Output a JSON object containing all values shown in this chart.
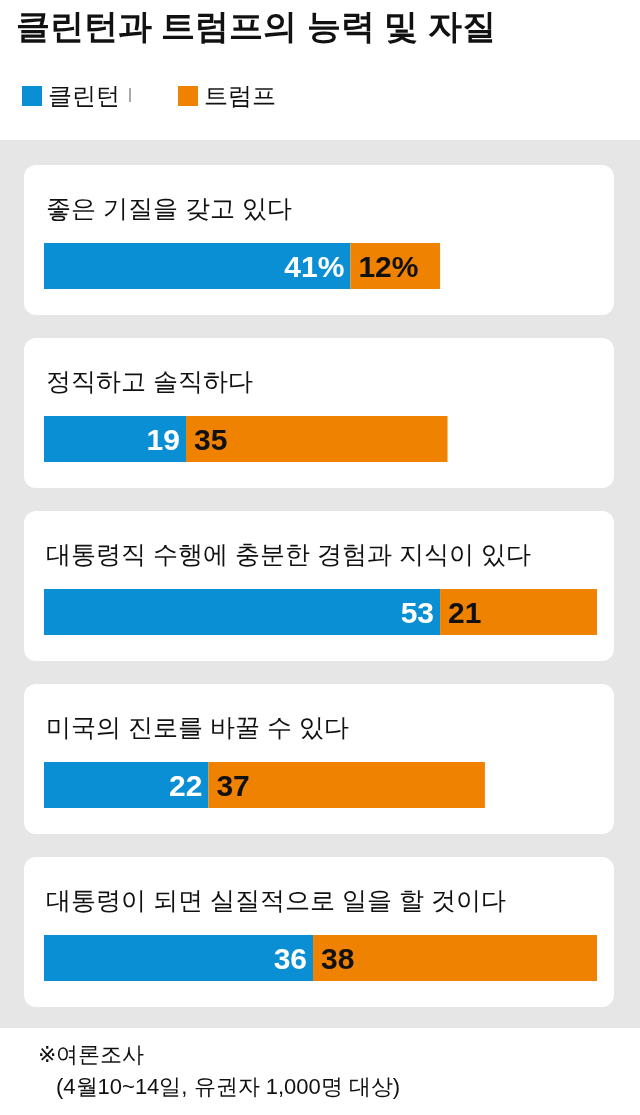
{
  "chart_data": {
    "type": "bar",
    "orientation": "horizontal",
    "stacked": true,
    "title": "클린턴과 트럼프의 능력 및 자질",
    "legend": "top left",
    "categories": [
      "좋은 기질을 갖고 있다",
      "정직하고 솔직하다",
      "대통령직 수행에 충분한 경험과 지식이 있다",
      "미국의 진로를 바꿀 수 있다",
      "대통령이 되면 실질적으로 일을 할 것이다"
    ],
    "series": [
      {
        "name": "클린턴",
        "color": "#0a8fd4",
        "values": [
          41,
          19,
          53,
          22,
          36
        ],
        "value_labels": [
          "41%",
          "19",
          "53",
          "22",
          "36"
        ]
      },
      {
        "name": "트럼프",
        "color": "#ef8200",
        "values": [
          12,
          35,
          21,
          37,
          38
        ],
        "value_labels": [
          "12%",
          "35",
          "21",
          "37",
          "38"
        ]
      }
    ],
    "annotations": [
      "※여론조사",
      "(4월10~14일, 유권자 1,000명 대상)"
    ]
  }
}
